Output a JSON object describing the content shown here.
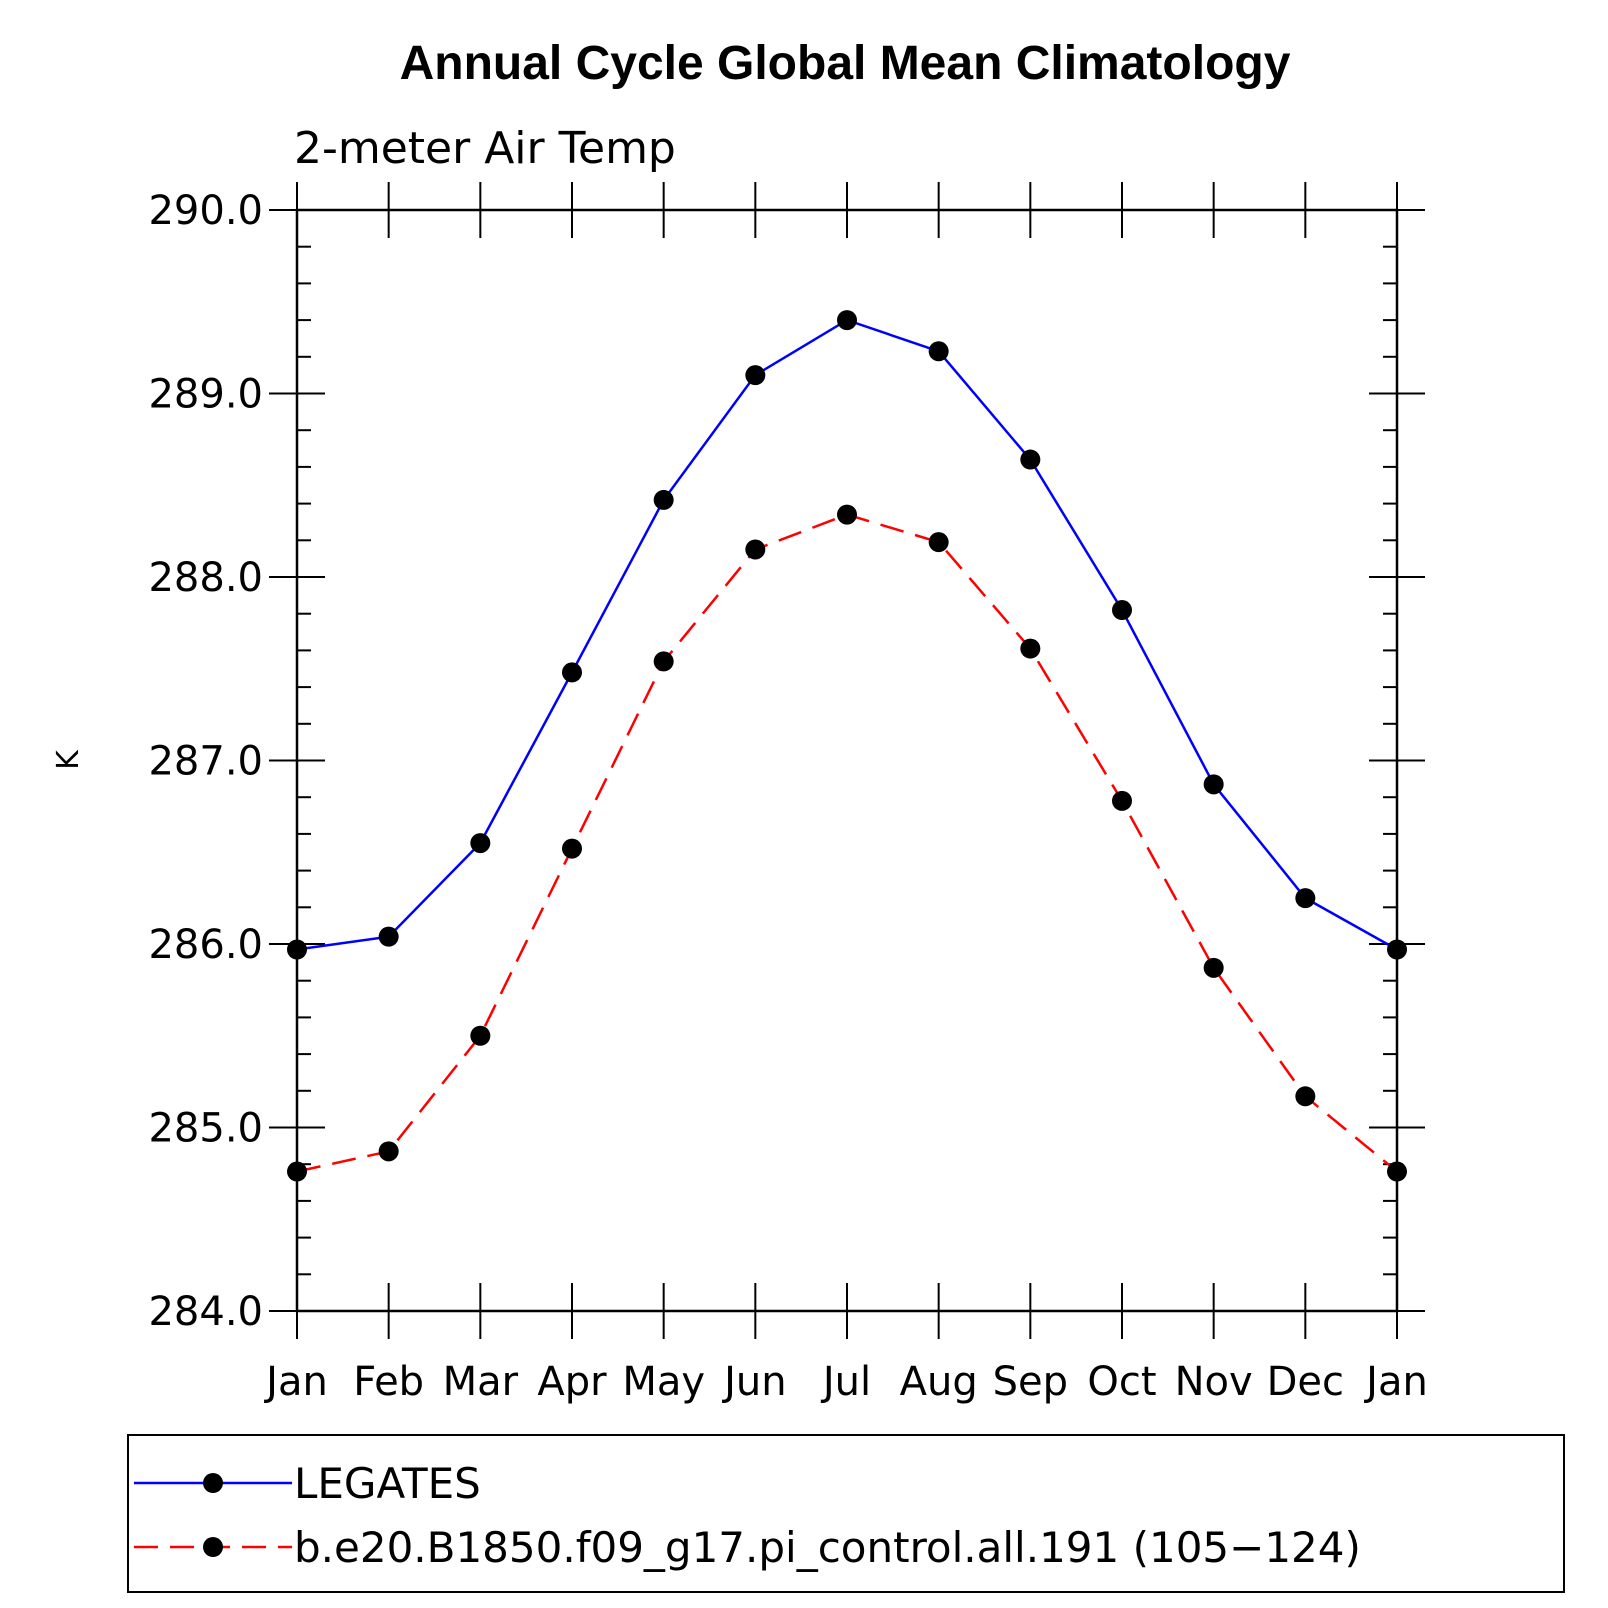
{
  "chart_data": {
    "type": "line",
    "title": "Annual Cycle Global Mean Climatology",
    "subtitle": "2-meter Air Temp",
    "xlabel": "",
    "ylabel": "K",
    "categories": [
      "Jan",
      "Feb",
      "Mar",
      "Apr",
      "May",
      "Jun",
      "Jul",
      "Aug",
      "Sep",
      "Oct",
      "Nov",
      "Dec",
      "Jan"
    ],
    "ylim": [
      284.0,
      290.0
    ],
    "yticks": [
      "284.0",
      "285.0",
      "286.0",
      "287.0",
      "288.0",
      "289.0",
      "290.0"
    ],
    "grid": false,
    "legend_position": "bottom",
    "series": [
      {
        "name": "LEGATES",
        "color": "#0000ff",
        "dash": "solid",
        "marker": "circle",
        "values": [
          285.97,
          286.04,
          286.55,
          287.48,
          288.42,
          289.1,
          289.4,
          289.23,
          288.64,
          287.82,
          286.87,
          286.25,
          285.97
        ]
      },
      {
        "name": "b.e20.B1850.f09_g17.pi_control.all.191 (105−124)",
        "color": "#ff0000",
        "dash": "dashed",
        "marker": "circle",
        "values": [
          284.76,
          284.87,
          285.5,
          286.52,
          287.54,
          288.15,
          288.34,
          288.19,
          287.61,
          286.78,
          285.87,
          285.17,
          284.76
        ]
      }
    ]
  }
}
